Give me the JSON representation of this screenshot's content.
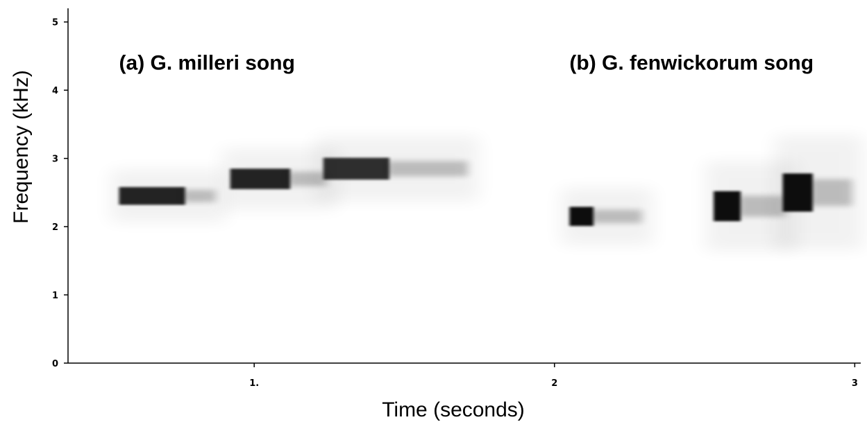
{
  "chart_data": {
    "type": "spectrogram",
    "xlabel": "Time (seconds)",
    "ylabel": "Frequency (kHz)",
    "xlim": [
      0.38,
      3.02
    ],
    "ylim": [
      0,
      5.2
    ],
    "x_ticks": [
      {
        "value": 1.0,
        "label": "1."
      },
      {
        "value": 2.0,
        "label": "2"
      },
      {
        "value": 3.0,
        "label": "3"
      }
    ],
    "y_ticks": [
      {
        "value": 0,
        "label": "0"
      },
      {
        "value": 1,
        "label": "1"
      },
      {
        "value": 2,
        "label": "2"
      },
      {
        "value": 3,
        "label": "3"
      },
      {
        "value": 4,
        "label": "4"
      },
      {
        "value": 5,
        "label": "5"
      }
    ],
    "grid": false,
    "annotations": [
      {
        "text": "(a) G. milleri song",
        "x": 0.55,
        "y": 4.3
      },
      {
        "text": "(b) G. fenwickorum song",
        "x": 2.05,
        "y": 4.3
      }
    ],
    "series": [
      {
        "notes": [
          {
            "t_start": 0.55,
            "t_end": 0.77,
            "f_center": 2.45,
            "f_halfwidth": 0.13,
            "tail_end": 0.88,
            "intensity": 0.9
          },
          {
            "t_start": 0.92,
            "t_end": 1.12,
            "f_center": 2.7,
            "f_halfwidth": 0.15,
            "tail_end": 1.25,
            "intensity": 0.9
          },
          {
            "t_start": 1.23,
            "t_end": 1.45,
            "f_center": 2.85,
            "f_halfwidth": 0.16,
            "tail_end": 1.72,
            "intensity": 0.85
          }
        ]
      },
      {
        "notes": [
          {
            "t_start": 2.05,
            "t_end": 2.13,
            "f_center": 2.15,
            "f_halfwidth": 0.14,
            "tail_end": 2.3,
            "intensity": 1.0
          },
          {
            "t_start": 2.53,
            "t_end": 2.62,
            "f_center": 2.3,
            "f_halfwidth": 0.22,
            "tail_end": 2.78,
            "intensity": 1.0
          },
          {
            "t_start": 2.76,
            "t_end": 2.86,
            "f_center": 2.5,
            "f_halfwidth": 0.28,
            "tail_end": 3.0,
            "intensity": 1.0
          }
        ]
      }
    ]
  }
}
